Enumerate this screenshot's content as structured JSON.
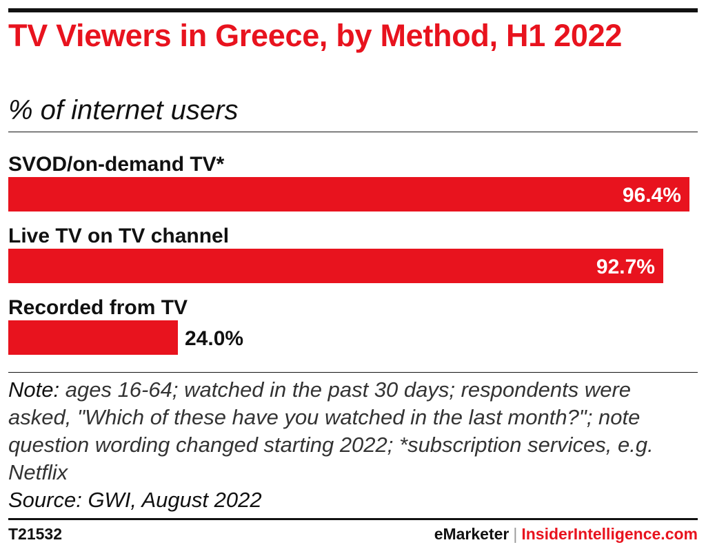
{
  "header": {
    "title": "TV Viewers in Greece, by Method, H1 2022",
    "subtitle": "% of internet users"
  },
  "chart_data": {
    "type": "bar",
    "orientation": "horizontal",
    "title": "TV Viewers in Greece, by Method, H1 2022",
    "subtitle": "% of internet users",
    "categories": [
      "SVOD/on-demand TV*",
      "Live TV on TV channel",
      "Recorded from TV"
    ],
    "values": [
      96.4,
      92.7,
      24.0
    ],
    "value_labels": [
      "96.4%",
      "92.7%",
      "24.0%"
    ],
    "xlim": [
      0,
      96.4
    ],
    "bar_color": "#e8131e",
    "grid": false,
    "legend": "none"
  },
  "note": {
    "lead": "Note:",
    "text": "ages 16-64; watched in the past 30 days; respondents were asked, \"Which of these have you watched in the last month?\"; note question wording changed starting 2022; *subscription services, e.g. Netflix",
    "source": "Source: GWI, August 2022"
  },
  "footer": {
    "chart_id": "T21532",
    "brand_primary": "eMarketer",
    "separator": "|",
    "brand_secondary": "InsiderIntelligence.com"
  },
  "colors": {
    "accent": "#e8131e",
    "text": "#111111"
  }
}
